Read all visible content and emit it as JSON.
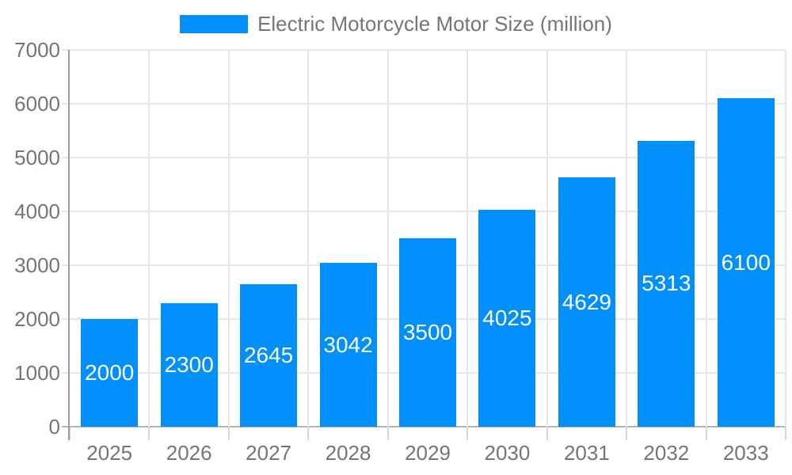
{
  "legend": {
    "label": "Electric Motorcycle Motor Size (million)"
  },
  "chart_data": {
    "type": "bar",
    "title": "Electric Motorcycle Motor Size (million)",
    "series_name": "Electric Motorcycle Motor Size (million)",
    "categories": [
      "2025",
      "2026",
      "2027",
      "2028",
      "2029",
      "2030",
      "2031",
      "2032",
      "2033"
    ],
    "values": [
      2000,
      2300,
      2645,
      3042,
      3500,
      4025,
      4629,
      5313,
      6100
    ],
    "xlabel": "",
    "ylabel": "",
    "ylim": [
      0,
      7000
    ],
    "yticks": [
      0,
      1000,
      2000,
      3000,
      4000,
      5000,
      6000,
      7000
    ],
    "grid": true,
    "legend_position": "top",
    "bar_color": "#008FFB",
    "label_color": "#ffffff"
  },
  "colors": {
    "background": "#ffffff",
    "bar": "#008FFB",
    "bar_label": "#ffffff",
    "axis_text": "#757575",
    "grid": "#E7E7E7",
    "axis_line": "#9E9E9E",
    "baseline": "#B3B3B3",
    "tick": "#D6D6D6"
  }
}
